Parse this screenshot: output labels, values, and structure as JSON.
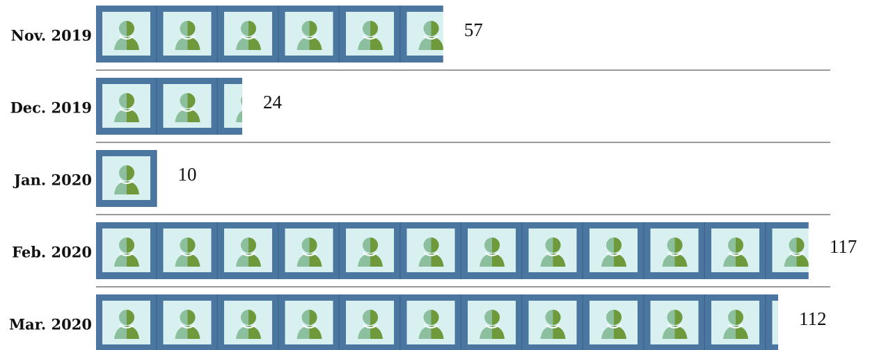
{
  "chart_data": {
    "type": "pictogram",
    "categories": [
      "Nov. 2019",
      "Dec. 2019",
      "Jan. 2020",
      "Feb. 2020",
      "Mar. 2020"
    ],
    "values": [
      57,
      24,
      10,
      117,
      112
    ],
    "color": "#4a76a0"
  }
}
